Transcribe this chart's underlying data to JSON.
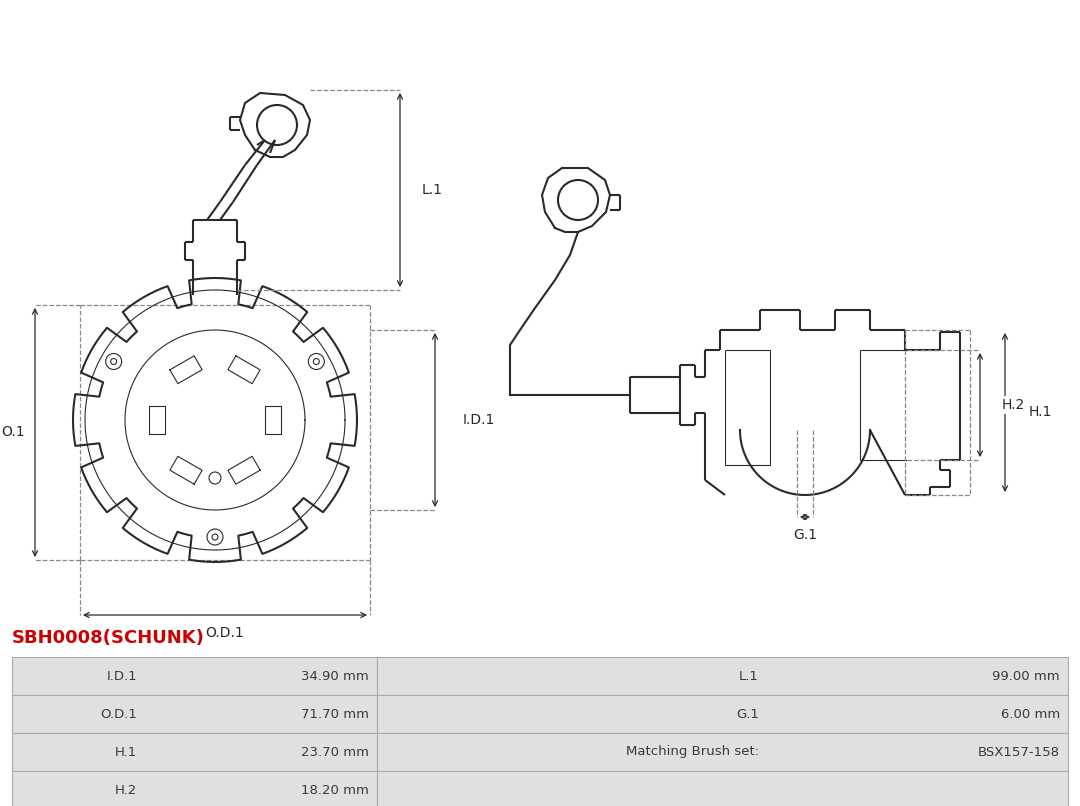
{
  "part_name": "SBH0008(SCHUNK)",
  "bg_color": "#ffffff",
  "line_color": "#2a2a2a",
  "dim_color": "#2a2a2a",
  "title_color": "#cc0000",
  "table_bg": "#e0e0e0",
  "table_border": "#aaaaaa",
  "table_data": [
    [
      "I.D.1",
      "34.90 mm",
      "L.1",
      "99.00 mm"
    ],
    [
      "O.D.1",
      "71.70 mm",
      "G.1",
      "6.00 mm"
    ],
    [
      "H.1",
      "23.70 mm",
      "Matching Brush set:",
      "BSX157-158"
    ],
    [
      "H.2",
      "18.20 mm",
      "",
      ""
    ]
  ]
}
